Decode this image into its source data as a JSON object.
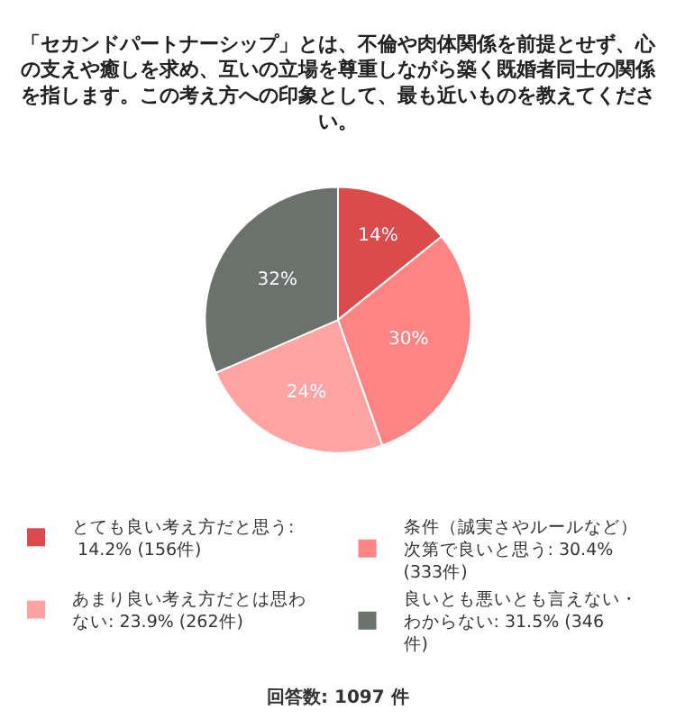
{
  "chart_data": {
    "type": "pie",
    "title": "「セカンドパートナーシップ」とは、不倫や肉体関係を前提とせず、心の支えや癒しを求め、互いの立場を尊重しながら築く既婚者同士の関係を指します。この考え方への印象として、最も近いものを教えてください。",
    "categories": [
      "とても良い考え方だと思う: 14.2% (156件)",
      "条件（誠実さやルールなど）次第で良いと思う: 30.4% (333件)",
      "あまり良い考え方だとは思わない: 23.9% (262件)",
      "良いとも悪いとも言えない・わからない: 31.5% (346件)"
    ],
    "values": [
      14.2,
      30.4,
      23.9,
      31.5
    ],
    "value_labels": [
      "14%",
      "30%",
      "24%",
      "32%"
    ],
    "colors": [
      "#dc4b4b",
      "#ff8585",
      "#ffa3a3",
      "#6b716c"
    ],
    "legend": "bottom",
    "annotations": [
      "回答数: 1097 件"
    ]
  }
}
